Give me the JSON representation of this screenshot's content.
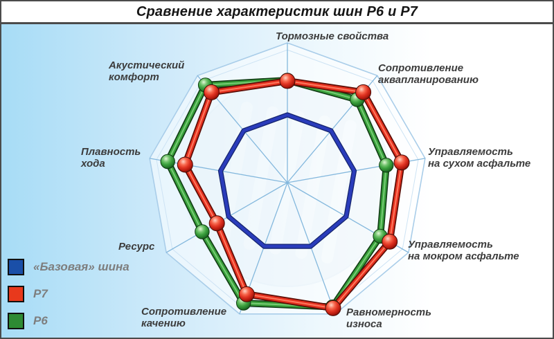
{
  "window": {
    "title": "Сравнение характеристик шин Р6 и Р7"
  },
  "legend": {
    "items": [
      {
        "label": "«Базовая» шина",
        "color": "#1a4fa8"
      },
      {
        "label": "Р7",
        "color": "#e8391c"
      },
      {
        "label": "Р6",
        "color": "#2e8b33"
      }
    ]
  },
  "chart_data": {
    "type": "radar",
    "title": "Сравнение характеристик шин Р6 и Р7",
    "axes": [
      {
        "id": "braking-properties",
        "label": "Тормозные свойства"
      },
      {
        "id": "aquaplaning-resistance",
        "label": "Сопротивление\nаквапланированию"
      },
      {
        "id": "dry-asphalt-handling",
        "label": "Управляемость\nна сухом асфальте"
      },
      {
        "id": "wet-asphalt-handling",
        "label": "Управляемость\nна мокром асфальте"
      },
      {
        "id": "wear-uniformity",
        "label": "Равномерность\nизноса"
      },
      {
        "id": "rolling-resistance",
        "label": "Сопротивление\nкачению"
      },
      {
        "id": "resource",
        "label": "Ресурс"
      },
      {
        "id": "ride-smoothness",
        "label": "Плавность\nхода"
      },
      {
        "id": "acoustic-comfort",
        "label": "Акустический\nкомфорт"
      }
    ],
    "series": [
      {
        "name": "«Базовая» шина",
        "color": "#2a3cbb",
        "marker": "none",
        "values": [
          1.0,
          1.0,
          1.0,
          1.0,
          1.0,
          1.0,
          1.0,
          1.0,
          1.0
        ]
      },
      {
        "name": "Р7",
        "color": "#e5301e",
        "marker": "sphere",
        "values": [
          1.5,
          1.74,
          1.71,
          1.74,
          1.97,
          1.75,
          1.2,
          1.53,
          1.74
        ]
      },
      {
        "name": "Р6",
        "color": "#38a03a",
        "marker": "sphere",
        "values": [
          1.51,
          1.6,
          1.48,
          1.58,
          1.95,
          1.89,
          1.45,
          1.79,
          1.88
        ]
      }
    ],
    "scale": {
      "baseline": 1.0,
      "grid_max": 2.0,
      "note": "values relative to base tire polygon (blue) = 1.0"
    },
    "grid": "9 light-blue spokes with faint outer nonagon web",
    "legend_position": "bottom-left"
  }
}
